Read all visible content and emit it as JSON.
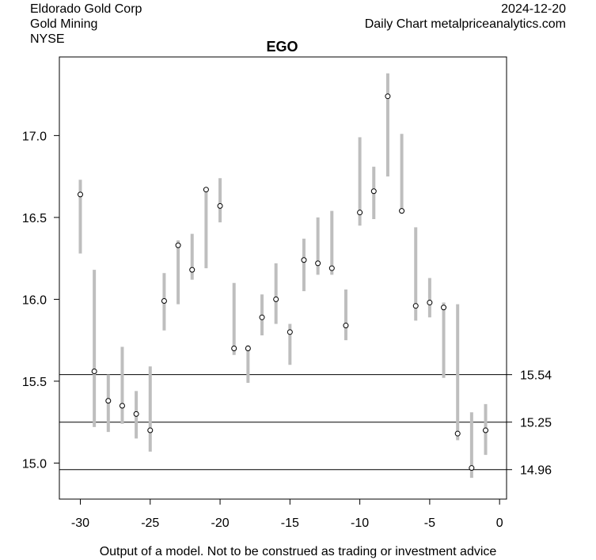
{
  "header": {
    "company": "Eldorado Gold Corp",
    "sector": "Gold Mining",
    "exchange": "NYSE",
    "date": "2024-12-20",
    "source": "Daily Chart metalpriceanalytics.com"
  },
  "footer": "Output of a model. Not to be construed as trading or investment advice",
  "chart_data": {
    "type": "scatter",
    "title": "EGO",
    "xlabel": "",
    "ylabel": "",
    "xlim": [
      -31.5,
      0.5
    ],
    "ylim": [
      14.78,
      17.48
    ],
    "x_ticks": [
      -30,
      -25,
      -20,
      -15,
      -10,
      -5,
      0
    ],
    "x_tick_labels": [
      "-30",
      "-25",
      "-20",
      "-15",
      "-10",
      "-5",
      "0"
    ],
    "y_ticks": [
      15.0,
      15.5,
      16.0,
      16.5,
      17.0
    ],
    "y_tick_labels": [
      "15.0",
      "15.5",
      "16.0",
      "16.5",
      "17.0"
    ],
    "grid": false,
    "colors": {
      "range_bar": "#bebebe",
      "point": "#000000",
      "line": "#000000"
    },
    "horizontal_lines": [
      {
        "value": 15.54,
        "label": "15.54"
      },
      {
        "value": 15.25,
        "label": "15.25"
      },
      {
        "value": 14.96,
        "label": "14.96"
      }
    ],
    "points": [
      {
        "x": -30,
        "low": 16.28,
        "high": 16.73,
        "close": 16.64
      },
      {
        "x": -29,
        "low": 15.22,
        "high": 16.18,
        "close": 15.56
      },
      {
        "x": -28,
        "low": 15.19,
        "high": 15.54,
        "close": 15.38
      },
      {
        "x": -27,
        "low": 15.24,
        "high": 15.71,
        "close": 15.35
      },
      {
        "x": -26,
        "low": 15.15,
        "high": 15.44,
        "close": 15.3
      },
      {
        "x": -25,
        "low": 15.07,
        "high": 15.59,
        "close": 15.2
      },
      {
        "x": -24,
        "low": 15.81,
        "high": 16.16,
        "close": 15.99
      },
      {
        "x": -23,
        "low": 15.97,
        "high": 16.36,
        "close": 16.33
      },
      {
        "x": -22,
        "low": 16.12,
        "high": 16.4,
        "close": 16.18
      },
      {
        "x": -21,
        "low": 16.19,
        "high": 16.68,
        "close": 16.67
      },
      {
        "x": -20,
        "low": 16.47,
        "high": 16.74,
        "close": 16.57
      },
      {
        "x": -19,
        "low": 15.66,
        "high": 16.1,
        "close": 15.7
      },
      {
        "x": -18,
        "low": 15.49,
        "high": 15.72,
        "close": 15.7
      },
      {
        "x": -17,
        "low": 15.78,
        "high": 16.03,
        "close": 15.89
      },
      {
        "x": -16,
        "low": 15.85,
        "high": 16.22,
        "close": 16.0
      },
      {
        "x": -15,
        "low": 15.6,
        "high": 15.85,
        "close": 15.8
      },
      {
        "x": -14,
        "low": 16.05,
        "high": 16.37,
        "close": 16.24
      },
      {
        "x": -13,
        "low": 16.15,
        "high": 16.5,
        "close": 16.22
      },
      {
        "x": -12,
        "low": 16.15,
        "high": 16.54,
        "close": 16.19
      },
      {
        "x": -11,
        "low": 15.75,
        "high": 16.06,
        "close": 15.84
      },
      {
        "x": -10,
        "low": 16.45,
        "high": 16.99,
        "close": 16.53
      },
      {
        "x": -9,
        "low": 16.49,
        "high": 16.81,
        "close": 16.66
      },
      {
        "x": -8,
        "low": 16.75,
        "high": 17.38,
        "close": 17.24
      },
      {
        "x": -7,
        "low": 16.53,
        "high": 17.01,
        "close": 16.54
      },
      {
        "x": -6,
        "low": 15.87,
        "high": 16.44,
        "close": 15.96
      },
      {
        "x": -5,
        "low": 15.89,
        "high": 16.13,
        "close": 15.98
      },
      {
        "x": -4,
        "low": 15.52,
        "high": 15.98,
        "close": 15.95
      },
      {
        "x": -3,
        "low": 15.14,
        "high": 15.97,
        "close": 15.18
      },
      {
        "x": -2,
        "low": 14.91,
        "high": 15.31,
        "close": 14.97
      },
      {
        "x": -1,
        "low": 15.05,
        "high": 15.36,
        "close": 15.2
      }
    ]
  }
}
